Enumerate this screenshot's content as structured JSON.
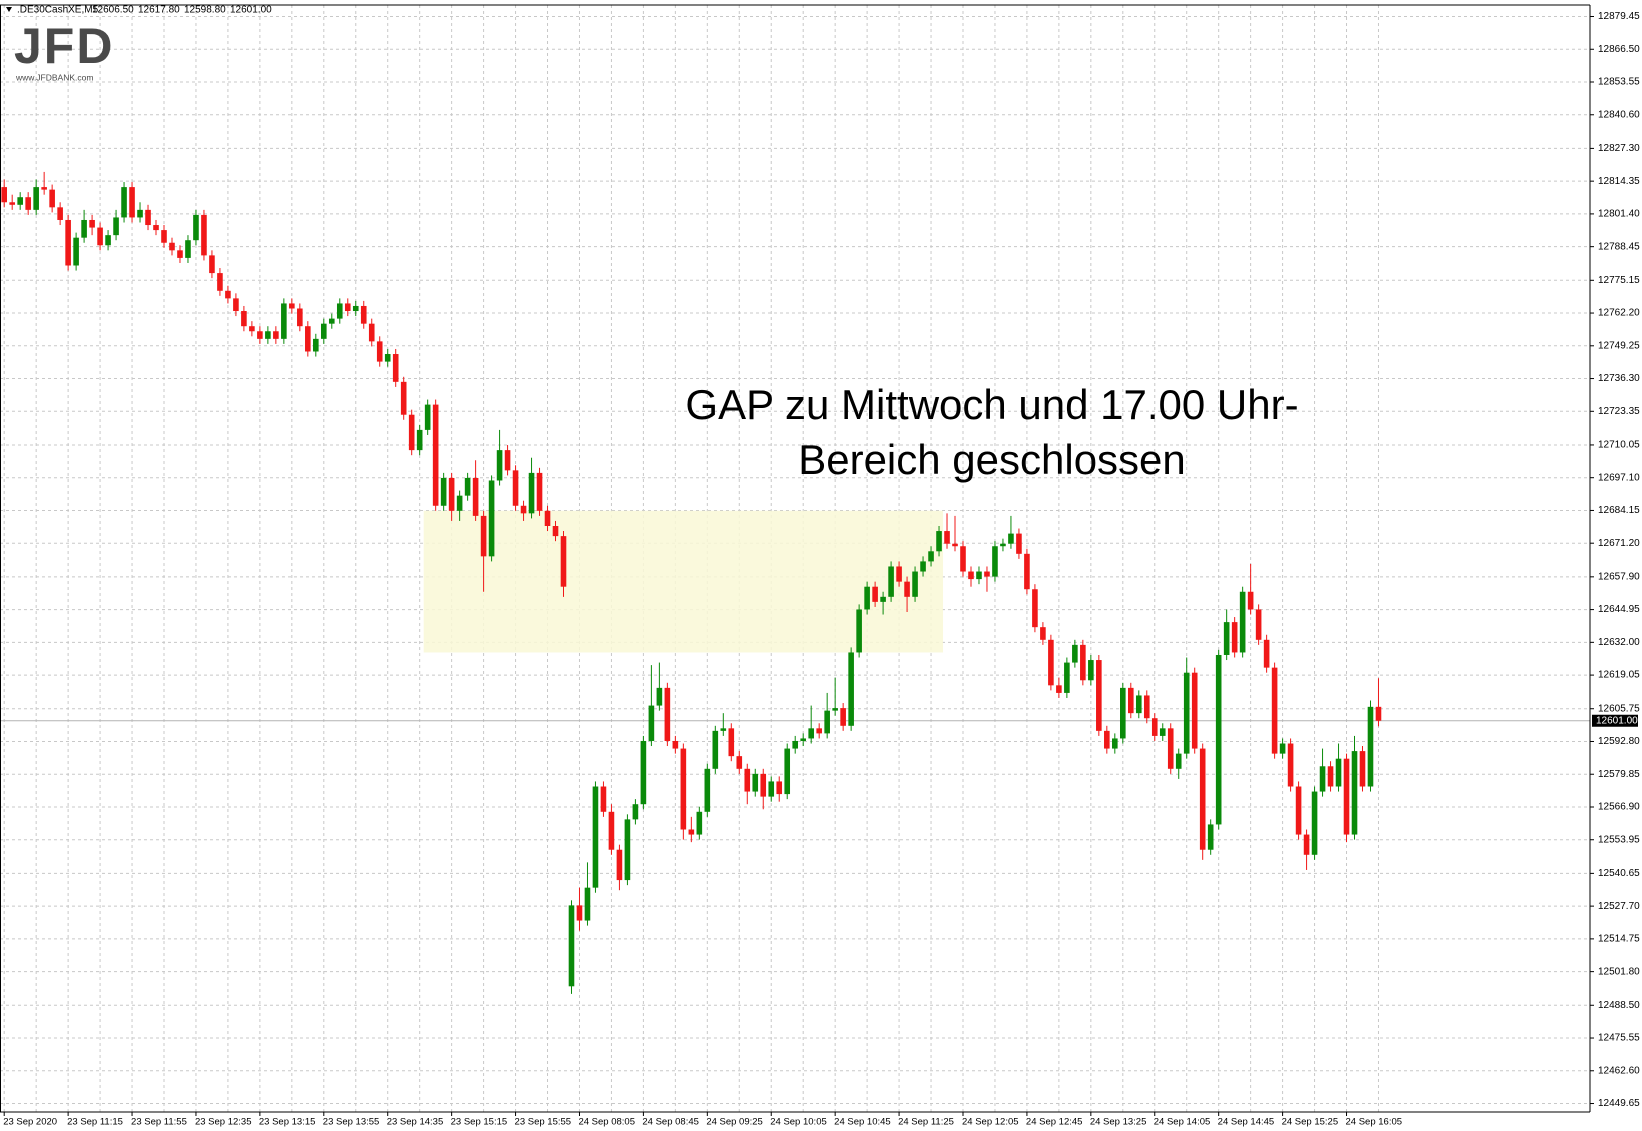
{
  "chart_data": {
    "type": "candlestick",
    "symbol": ".DE30CashXE,M5",
    "quote_labels": [
      "12606.50",
      "12617.80",
      "12598.80",
      "12601.00"
    ],
    "logo": "JFD",
    "logo_url": "www.JFDBANK.com",
    "annotation": [
      "GAP zu Mittwoch und 17.00 Uhr-",
      "Bereich geschlossen"
    ],
    "up_color": "#0a8a0a",
    "down_color": "#f01818",
    "grid": true,
    "highlight": {
      "start": 53,
      "end": 117,
      "low": 12628,
      "high": 12684,
      "color": "#f9f8d6"
    },
    "last_price": {
      "value": 12601,
      "label": "12601.00"
    },
    "ylim": [
      12446.3,
      12884.0
    ],
    "yticks": [
      {
        "value": 12879.45,
        "label": "12879.45"
      },
      {
        "value": 12866.5,
        "label": "12866.50"
      },
      {
        "value": 12853.55,
        "label": "12853.55"
      },
      {
        "value": 12840.6,
        "label": "12840.60"
      },
      {
        "value": 12827.3,
        "label": "12827.30"
      },
      {
        "value": 12814.35,
        "label": "12814.35"
      },
      {
        "value": 12801.4,
        "label": "12801.40"
      },
      {
        "value": 12788.45,
        "label": "12788.45"
      },
      {
        "value": 12775.15,
        "label": "12775.15"
      },
      {
        "value": 12762.2,
        "label": "12762.20"
      },
      {
        "value": 12749.25,
        "label": "12749.25"
      },
      {
        "value": 12736.3,
        "label": "12736.30"
      },
      {
        "value": 12723.35,
        "label": "12723.35"
      },
      {
        "value": 12710.05,
        "label": "12710.05"
      },
      {
        "value": 12697.1,
        "label": "12697.10"
      },
      {
        "value": 12684.15,
        "label": "12684.15"
      },
      {
        "value": 12671.2,
        "label": "12671.20"
      },
      {
        "value": 12657.9,
        "label": "12657.90"
      },
      {
        "value": 12644.95,
        "label": "12644.95"
      },
      {
        "value": 12632,
        "label": "12632.00"
      },
      {
        "value": 12619.05,
        "label": "12619.05"
      },
      {
        "value": 12605.75,
        "label": "12605.75"
      },
      {
        "value": 12592.8,
        "label": "12592.80"
      },
      {
        "value": 12579.85,
        "label": "12579.85"
      },
      {
        "value": 12566.9,
        "label": "12566.90"
      },
      {
        "value": 12553.95,
        "label": "12553.95"
      },
      {
        "value": 12540.65,
        "label": "12540.65"
      },
      {
        "value": 12527.7,
        "label": "12527.70"
      },
      {
        "value": 12514.75,
        "label": "12514.75"
      },
      {
        "value": 12501.8,
        "label": "12501.80"
      },
      {
        "value": 12488.5,
        "label": "12488.50"
      },
      {
        "value": 12475.55,
        "label": "12475.55"
      },
      {
        "value": 12462.6,
        "label": "12462.60"
      },
      {
        "value": 12449.65,
        "label": "12449.65"
      }
    ],
    "categories": [
      "23 Sep 2020",
      null,
      null,
      null,
      null,
      null,
      null,
      null,
      "23 Sep 11:15",
      null,
      null,
      null,
      null,
      null,
      null,
      null,
      "23 Sep 11:55",
      null,
      null,
      null,
      null,
      null,
      null,
      null,
      "23 Sep 12:35",
      null,
      null,
      null,
      null,
      null,
      null,
      null,
      "23 Sep 13:15",
      null,
      null,
      null,
      null,
      null,
      null,
      null,
      "23 Sep 13:55",
      null,
      null,
      null,
      null,
      null,
      null,
      null,
      "23 Sep 14:35",
      null,
      null,
      null,
      null,
      null,
      null,
      null,
      "23 Sep 15:15",
      null,
      null,
      null,
      null,
      null,
      null,
      null,
      "23 Sep 15:55",
      null,
      null,
      null,
      null,
      null,
      null,
      null,
      "24 Sep 08:05",
      null,
      null,
      null,
      null,
      null,
      null,
      null,
      "24 Sep 08:45",
      null,
      null,
      null,
      null,
      null,
      null,
      null,
      "24 Sep 09:25",
      null,
      null,
      null,
      null,
      null,
      null,
      null,
      "24 Sep 10:05",
      null,
      null,
      null,
      null,
      null,
      null,
      null,
      "24 Sep 10:45",
      null,
      null,
      null,
      null,
      null,
      null,
      null,
      "24 Sep 11:25",
      null,
      null,
      null,
      null,
      null,
      null,
      null,
      "24 Sep 12:05",
      null,
      null,
      null,
      null,
      null,
      null,
      null,
      "24 Sep 12:45",
      null,
      null,
      null,
      null,
      null,
      null,
      null,
      "24 Sep 13:25",
      null,
      null,
      null,
      null,
      null,
      null,
      null,
      "24 Sep 14:05",
      null,
      null,
      null,
      null,
      null,
      null,
      null,
      "24 Sep 14:45",
      null,
      null,
      null,
      null,
      null,
      null,
      null,
      "24 Sep 15:25",
      null,
      null,
      null,
      null,
      null,
      null,
      null,
      "24 Sep 16:05",
      null,
      null,
      null,
      null
    ],
    "ohlc": [
      [
        12812,
        12815,
        12804,
        12806
      ],
      [
        12806,
        12809,
        12803,
        12805
      ],
      [
        12805,
        12810,
        12803,
        12808
      ],
      [
        12808,
        12810,
        12801,
        12803
      ],
      [
        12803,
        12815,
        12801,
        12812
      ],
      [
        12812,
        12818,
        12809,
        12811
      ],
      [
        12811,
        12813,
        12802,
        12804
      ],
      [
        12804,
        12806,
        12797,
        12799
      ],
      [
        12799,
        12801,
        12779,
        12781
      ],
      [
        12781,
        12794,
        12779,
        12792
      ],
      [
        12792,
        12803,
        12790,
        12799
      ],
      [
        12799,
        12801,
        12793,
        12796
      ],
      [
        12796,
        12798,
        12787,
        12789
      ],
      [
        12789,
        12795,
        12787,
        12793
      ],
      [
        12793,
        12803,
        12791,
        12800
      ],
      [
        12800,
        12814,
        12798,
        12812
      ],
      [
        12812,
        12814,
        12798,
        12800
      ],
      [
        12800,
        12806,
        12798,
        12803
      ],
      [
        12803,
        12805,
        12795,
        12797
      ],
      [
        12797,
        12799,
        12793,
        12795
      ],
      [
        12795,
        12797,
        12788,
        12790
      ],
      [
        12790,
        12792,
        12785,
        12787
      ],
      [
        12787,
        12789,
        12782,
        12784
      ],
      [
        12784,
        12793,
        12782,
        12791
      ],
      [
        12791,
        12803,
        12789,
        12801
      ],
      [
        12801,
        12803,
        12783,
        12785
      ],
      [
        12785,
        12787,
        12776,
        12778
      ],
      [
        12778,
        12780,
        12769,
        12771
      ],
      [
        12771,
        12773,
        12766,
        12768
      ],
      [
        12768,
        12770,
        12761,
        12763
      ],
      [
        12763,
        12765,
        12755,
        12757
      ],
      [
        12757,
        12759,
        12753,
        12755
      ],
      [
        12755,
        12757,
        12750,
        12752
      ],
      [
        12752,
        12757,
        12750,
        12755
      ],
      [
        12755,
        12757,
        12750,
        12752
      ],
      [
        12752,
        12768,
        12750,
        12766
      ],
      [
        12766,
        12768,
        12762,
        12764
      ],
      [
        12764,
        12766,
        12755,
        12757
      ],
      [
        12757,
        12759,
        12745,
        12747
      ],
      [
        12747,
        12754,
        12745,
        12752
      ],
      [
        12752,
        12760,
        12750,
        12758
      ],
      [
        12758,
        12762,
        12756,
        12760
      ],
      [
        12760,
        12768,
        12758,
        12766
      ],
      [
        12766,
        12768,
        12761,
        12763
      ],
      [
        12763,
        12767,
        12761,
        12765
      ],
      [
        12765,
        12767,
        12756,
        12758
      ],
      [
        12758,
        12760,
        12749,
        12751
      ],
      [
        12751,
        12753,
        12741,
        12743
      ],
      [
        12743,
        12748,
        12741,
        12746
      ],
      [
        12746,
        12748,
        12733,
        12735
      ],
      [
        12735,
        12737,
        12720,
        12722
      ],
      [
        12722,
        12724,
        12706,
        12708
      ],
      [
        12708,
        12718,
        12706,
        12716
      ],
      [
        12716,
        12728,
        12714,
        12726
      ],
      [
        12726,
        12728,
        12684,
        12686
      ],
      [
        12686,
        12699,
        12684,
        12697
      ],
      [
        12697,
        12699,
        12680,
        12684
      ],
      [
        12684,
        12692,
        12680,
        12690
      ],
      [
        12690,
        12699,
        12688,
        12697
      ],
      [
        12697,
        12704,
        12680,
        12682
      ],
      [
        12682,
        12684,
        12652,
        12666
      ],
      [
        12666,
        12698,
        12664,
        12696
      ],
      [
        12696,
        12716,
        12694,
        12708
      ],
      [
        12708,
        12710,
        12698,
        12700
      ],
      [
        12700,
        12702,
        12684,
        12686
      ],
      [
        12686,
        12688,
        12680,
        12683
      ],
      [
        12683,
        12705,
        12681,
        12699
      ],
      [
        12699,
        12701,
        12682,
        12684
      ],
      [
        12684,
        12686,
        12676,
        12678
      ],
      [
        12678,
        12680,
        12672,
        12674
      ],
      [
        12674,
        12676,
        12650,
        12654
      ],
      [
        12496,
        12530,
        12493,
        12528
      ],
      [
        12528,
        12535,
        12518,
        12522
      ],
      [
        12522,
        12545,
        12520,
        12535
      ],
      [
        12535,
        12577,
        12533,
        12575
      ],
      [
        12575,
        12577,
        12563,
        12565
      ],
      [
        12565,
        12568,
        12548,
        12550
      ],
      [
        12550,
        12552,
        12534,
        12538
      ],
      [
        12538,
        12564,
        12536,
        12562
      ],
      [
        12562,
        12570,
        12560,
        12568
      ],
      [
        12568,
        12595,
        12566,
        12593
      ],
      [
        12593,
        12623,
        12591,
        12607
      ],
      [
        12607,
        12624,
        12605,
        12614
      ],
      [
        12614,
        12616,
        12591,
        12593
      ],
      [
        12593,
        12595,
        12588,
        12590
      ],
      [
        12590,
        12592,
        12554,
        12558
      ],
      [
        12558,
        12563,
        12553,
        12556
      ],
      [
        12556,
        12567,
        12554,
        12565
      ],
      [
        12565,
        12584,
        12563,
        12582
      ],
      [
        12582,
        12599,
        12580,
        12597
      ],
      [
        12597,
        12604,
        12595,
        12598
      ],
      [
        12598,
        12600,
        12585,
        12587
      ],
      [
        12587,
        12589,
        12580,
        12582
      ],
      [
        12582,
        12584,
        12568,
        12573
      ],
      [
        12573,
        12582,
        12571,
        12580
      ],
      [
        12580,
        12582,
        12566,
        12571
      ],
      [
        12571,
        12579,
        12569,
        12577
      ],
      [
        12577,
        12579,
        12569,
        12572
      ],
      [
        12572,
        12592,
        12570,
        12590
      ],
      [
        12590,
        12595,
        12588,
        12593
      ],
      [
        12593,
        12596,
        12591,
        12594
      ],
      [
        12594,
        12607,
        12592,
        12598
      ],
      [
        12598,
        12600,
        12594,
        12596
      ],
      [
        12596,
        12612,
        12594,
        12605
      ],
      [
        12605,
        12618,
        12603,
        12606
      ],
      [
        12606,
        12608,
        12597,
        12599
      ],
      [
        12599,
        12630,
        12597,
        12628
      ],
      [
        12628,
        12647,
        12626,
        12645
      ],
      [
        12645,
        12656,
        12643,
        12654
      ],
      [
        12654,
        12656,
        12646,
        12648
      ],
      [
        12648,
        12652,
        12643,
        12650
      ],
      [
        12650,
        12664,
        12648,
        12662
      ],
      [
        12662,
        12664,
        12654,
        12656
      ],
      [
        12656,
        12658,
        12644,
        12650
      ],
      [
        12650,
        12662,
        12648,
        12660
      ],
      [
        12660,
        12666,
        12658,
        12664
      ],
      [
        12664,
        12670,
        12662,
        12668
      ],
      [
        12668,
        12678,
        12666,
        12676
      ],
      [
        12676,
        12683,
        12669,
        12671
      ],
      [
        12671,
        12682,
        12668,
        12670
      ],
      [
        12670,
        12672,
        12658,
        12660
      ],
      [
        12660,
        12662,
        12654,
        12657
      ],
      [
        12657,
        12662,
        12655,
        12660
      ],
      [
        12660,
        12662,
        12652,
        12658
      ],
      [
        12658,
        12672,
        12656,
        12670
      ],
      [
        12670,
        12673,
        12668,
        12671
      ],
      [
        12671,
        12682,
        12669,
        12675
      ],
      [
        12675,
        12677,
        12665,
        12667
      ],
      [
        12667,
        12669,
        12651,
        12653
      ],
      [
        12653,
        12655,
        12636,
        12638
      ],
      [
        12638,
        12640,
        12631,
        12633
      ],
      [
        12633,
        12635,
        12613,
        12615
      ],
      [
        12615,
        12618,
        12610,
        12612
      ],
      [
        12612,
        12626,
        12610,
        12624
      ],
      [
        12624,
        12633,
        12622,
        12631
      ],
      [
        12631,
        12633,
        12615,
        12617
      ],
      [
        12617,
        12627,
        12615,
        12625
      ],
      [
        12625,
        12627,
        12595,
        12597
      ],
      [
        12597,
        12599,
        12588,
        12590
      ],
      [
        12590,
        12596,
        12588,
        12594
      ],
      [
        12594,
        12616,
        12592,
        12614
      ],
      [
        12614,
        12616,
        12602,
        12604
      ],
      [
        12604,
        12613,
        12602,
        12611
      ],
      [
        12611,
        12613,
        12600,
        12602
      ],
      [
        12602,
        12604,
        12593,
        12595
      ],
      [
        12595,
        12600,
        12593,
        12598
      ],
      [
        12598,
        12600,
        12580,
        12582
      ],
      [
        12582,
        12590,
        12578,
        12588
      ],
      [
        12588,
        12626,
        12586,
        12620
      ],
      [
        12620,
        12622,
        12588,
        12590
      ],
      [
        12590,
        12592,
        12546,
        12550
      ],
      [
        12550,
        12562,
        12548,
        12560
      ],
      [
        12560,
        12629,
        12558,
        12627
      ],
      [
        12627,
        12645,
        12625,
        12640
      ],
      [
        12640,
        12642,
        12626,
        12628
      ],
      [
        12628,
        12654,
        12626,
        12652
      ],
      [
        12652,
        12663,
        12643,
        12645
      ],
      [
        12645,
        12647,
        12631,
        12633
      ],
      [
        12633,
        12635,
        12620,
        12622
      ],
      [
        12622,
        12624,
        12586,
        12588
      ],
      [
        12588,
        12594,
        12586,
        12592
      ],
      [
        12592,
        12594,
        12573,
        12575
      ],
      [
        12575,
        12577,
        12554,
        12556
      ],
      [
        12556,
        12558,
        12542,
        12548
      ],
      [
        12548,
        12575,
        12546,
        12573
      ],
      [
        12573,
        12590,
        12571,
        12583
      ],
      [
        12583,
        12585,
        12573,
        12575
      ],
      [
        12575,
        12592,
        12573,
        12586
      ],
      [
        12586,
        12588,
        12553,
        12556
      ],
      [
        12556,
        12595,
        12554,
        12589
      ],
      [
        12589,
        12591,
        12573,
        12575
      ],
      [
        12575,
        12609,
        12573,
        12606.5
      ],
      [
        12606.5,
        12617.8,
        12598.8,
        12601
      ]
    ]
  }
}
